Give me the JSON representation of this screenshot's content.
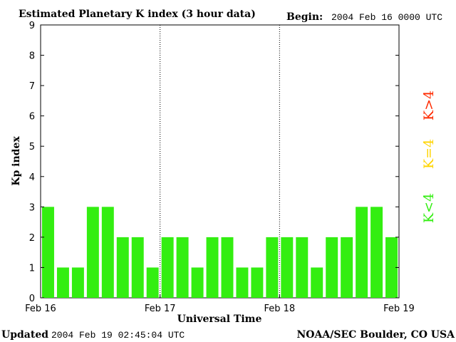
{
  "header": {
    "title": "Estimated Planetary K index (3 hour data)",
    "begin_label": "Begin:",
    "begin_value": "2004 Feb 16 0000 UTC"
  },
  "footer": {
    "updated_label": "Updated",
    "updated_value": "2004 Feb 19 02:45:04 UTC",
    "source": "NOAA/SEC Boulder, CO USA"
  },
  "legend": [
    {
      "label": "K>4",
      "color": "#ff2a00"
    },
    {
      "label": "K=4",
      "color": "#ffd400"
    },
    {
      "label": "K<4",
      "color": "#33ee11"
    }
  ],
  "chart_data": {
    "type": "bar",
    "title": "Estimated Planetary K index (3 hour data)",
    "xlabel": "Universal Time",
    "ylabel": "Kp index",
    "ylim": [
      0,
      9
    ],
    "yticks": [
      0,
      1,
      2,
      3,
      4,
      5,
      6,
      7,
      8,
      9
    ],
    "x_tick_labels": [
      "Feb 16",
      "Feb 17",
      "Feb 18",
      "Feb 19"
    ],
    "day_separators": [
      "Feb 17",
      "Feb 18"
    ],
    "interval_hours": 3,
    "values": [
      3,
      1,
      1,
      3,
      3,
      2,
      2,
      1,
      2,
      2,
      1,
      2,
      2,
      1,
      1,
      2,
      2,
      2,
      1,
      2,
      2,
      3,
      3,
      2
    ],
    "bar_color": "#33ee11",
    "grid": false
  }
}
